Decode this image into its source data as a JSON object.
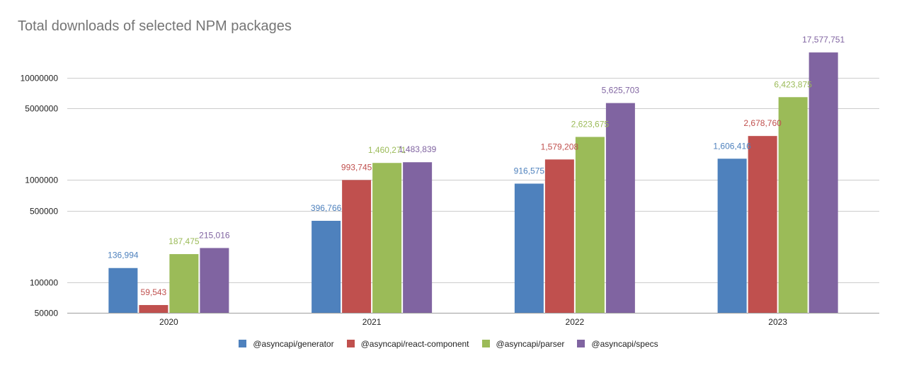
{
  "chart_data": {
    "type": "bar",
    "title": "Total downloads of selected NPM packages",
    "xlabel": "",
    "ylabel": "",
    "y_scale": "log",
    "ylim": [
      50000,
      20000000
    ],
    "y_ticks": [
      {
        "value": 50000,
        "label": "50000"
      },
      {
        "value": 100000,
        "label": "100000"
      },
      {
        "value": 500000,
        "label": "500000"
      },
      {
        "value": 1000000,
        "label": "1000000"
      },
      {
        "value": 5000000,
        "label": "5000000"
      },
      {
        "value": 10000000,
        "label": "10000000"
      }
    ],
    "grid": true,
    "legend_position": "bottom",
    "categories": [
      "2020",
      "2021",
      "2022",
      "2023"
    ],
    "series": [
      {
        "name": "@asyncapi/generator",
        "color": "#4e81bd",
        "values": [
          136994,
          396766,
          916575,
          1606416
        ],
        "labels": [
          "136,994",
          "396,766",
          "916,575",
          "1,606,416"
        ]
      },
      {
        "name": "@asyncapi/react-component",
        "color": "#c0504e",
        "values": [
          59543,
          993745,
          1579208,
          2678760
        ],
        "labels": [
          "59,543",
          "993,745",
          "1,579,208",
          "2,678,760"
        ]
      },
      {
        "name": "@asyncapi/parser",
        "color": "#9bbb58",
        "values": [
          187475,
          1460271,
          2623675,
          6423875
        ],
        "labels": [
          "187,475",
          "1,460,271",
          "2,623,675",
          "6,423,875"
        ]
      },
      {
        "name": "@asyncapi/specs",
        "color": "#8064a1",
        "values": [
          215016,
          1483839,
          5625703,
          17577751
        ],
        "labels": [
          "215,016",
          "1,483,839",
          "5,625,703",
          "17,577,751"
        ]
      }
    ]
  }
}
